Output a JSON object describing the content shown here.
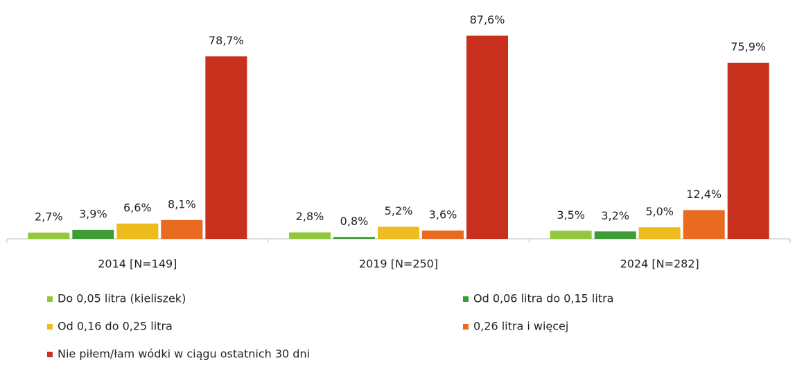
{
  "chart_data": {
    "type": "bar",
    "categories": [
      "2014 [N=149]",
      "2019 [N=250]",
      "2024 [N=282]"
    ],
    "series": [
      {
        "name": "Do 0,05 litra (kieliszek)",
        "color": "#92c83e",
        "values": [
          2.7,
          2.8,
          3.5
        ],
        "value_labels": [
          "2,7%",
          "2,8%",
          "3,5%"
        ]
      },
      {
        "name": "Od 0,06 litra do 0,15 litra",
        "color": "#3f9b35",
        "values": [
          3.9,
          0.8,
          3.2
        ],
        "value_labels": [
          "3,9%",
          "0,8%",
          "3,2%"
        ]
      },
      {
        "name": "Od 0,16 do 0,25 litra",
        "color": "#efbc1f",
        "values": [
          6.6,
          5.2,
          5.0
        ],
        "value_labels": [
          "6,6%",
          "5,2%",
          "5,0%"
        ]
      },
      {
        "name": "0,26 litra i więcej",
        "color": "#e96a21",
        "values": [
          8.1,
          3.6,
          12.4
        ],
        "value_labels": [
          "8,1%",
          "3,6%",
          "12,4%"
        ]
      },
      {
        "name": "Nie piłem/łam wódki w ciągu ostatnich 30 dni",
        "color": "#c8311e",
        "values": [
          78.7,
          87.6,
          75.9
        ],
        "value_labels": [
          "78,7%",
          "87,6%",
          "75,9%"
        ]
      }
    ],
    "ylim": [
      0,
      100
    ]
  }
}
